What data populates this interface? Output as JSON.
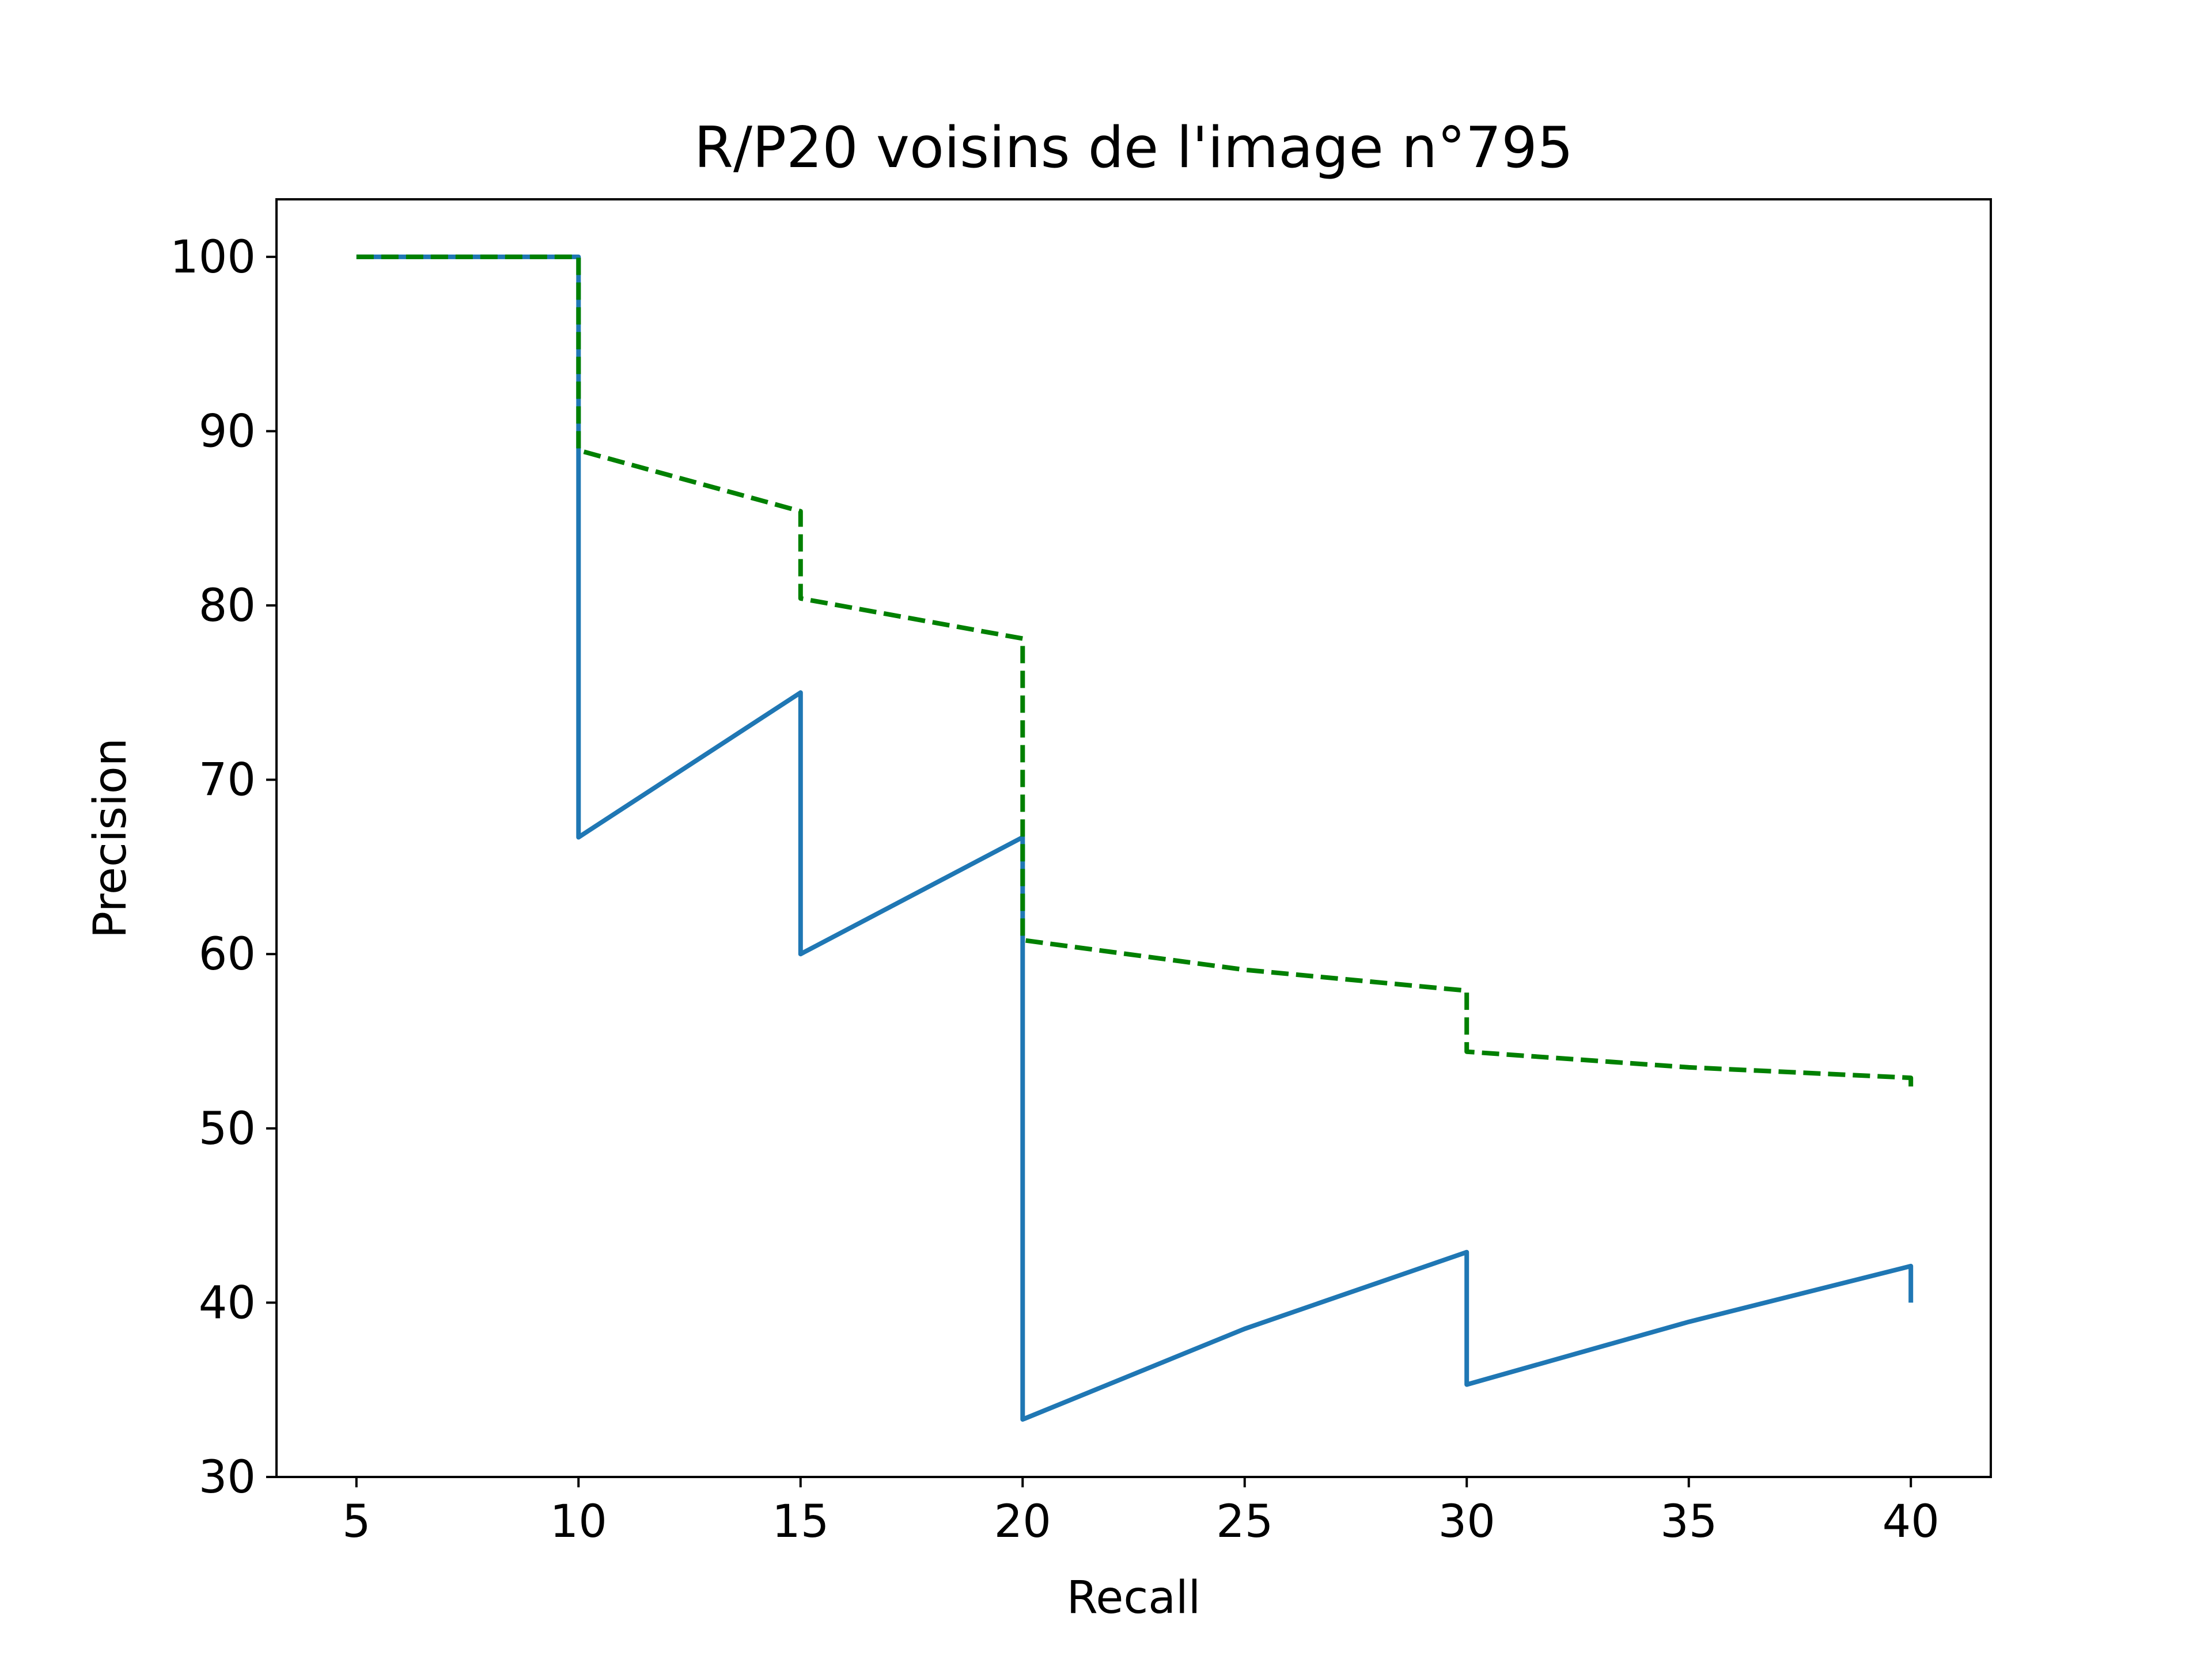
{
  "chart_data": {
    "type": "line",
    "title": "R/P20 voisins de l'image n°795",
    "xlabel": "Recall",
    "ylabel": "Precision",
    "xlim": [
      3.2,
      41.8
    ],
    "ylim": [
      30,
      103.3
    ],
    "x_ticks": [
      5,
      10,
      15,
      20,
      25,
      30,
      35,
      40
    ],
    "x_tick_labels": [
      "5",
      "10",
      "15",
      "20",
      "25",
      "30",
      "35",
      "40"
    ],
    "y_ticks": [
      30,
      40,
      50,
      60,
      70,
      80,
      90,
      100
    ],
    "y_tick_labels": [
      "30",
      "40",
      "50",
      "60",
      "70",
      "80",
      "90",
      "100"
    ],
    "grid": false,
    "series": [
      {
        "color": "#1f77b4",
        "style": "solid",
        "points": [
          [
            5,
            100
          ],
          [
            10,
            100
          ],
          [
            10,
            66.7
          ],
          [
            15,
            75
          ],
          [
            15,
            60
          ],
          [
            20,
            66.7
          ],
          [
            20,
            33.3
          ],
          [
            25,
            38.5
          ],
          [
            30,
            42.9
          ],
          [
            30,
            35.3
          ],
          [
            35,
            38.9
          ],
          [
            40,
            42.1
          ],
          [
            40,
            40
          ]
        ]
      },
      {
        "color": "#008000",
        "style": "dashed",
        "points": [
          [
            5,
            100
          ],
          [
            10,
            100
          ],
          [
            10,
            88.9
          ],
          [
            15,
            85.4
          ],
          [
            15,
            80.4
          ],
          [
            20,
            78.1
          ],
          [
            20,
            60.8
          ],
          [
            25,
            59.1
          ],
          [
            30,
            57.9
          ],
          [
            30,
            54.4
          ],
          [
            35,
            53.5
          ],
          [
            40,
            52.9
          ],
          [
            40,
            52.4
          ]
        ]
      }
    ]
  }
}
